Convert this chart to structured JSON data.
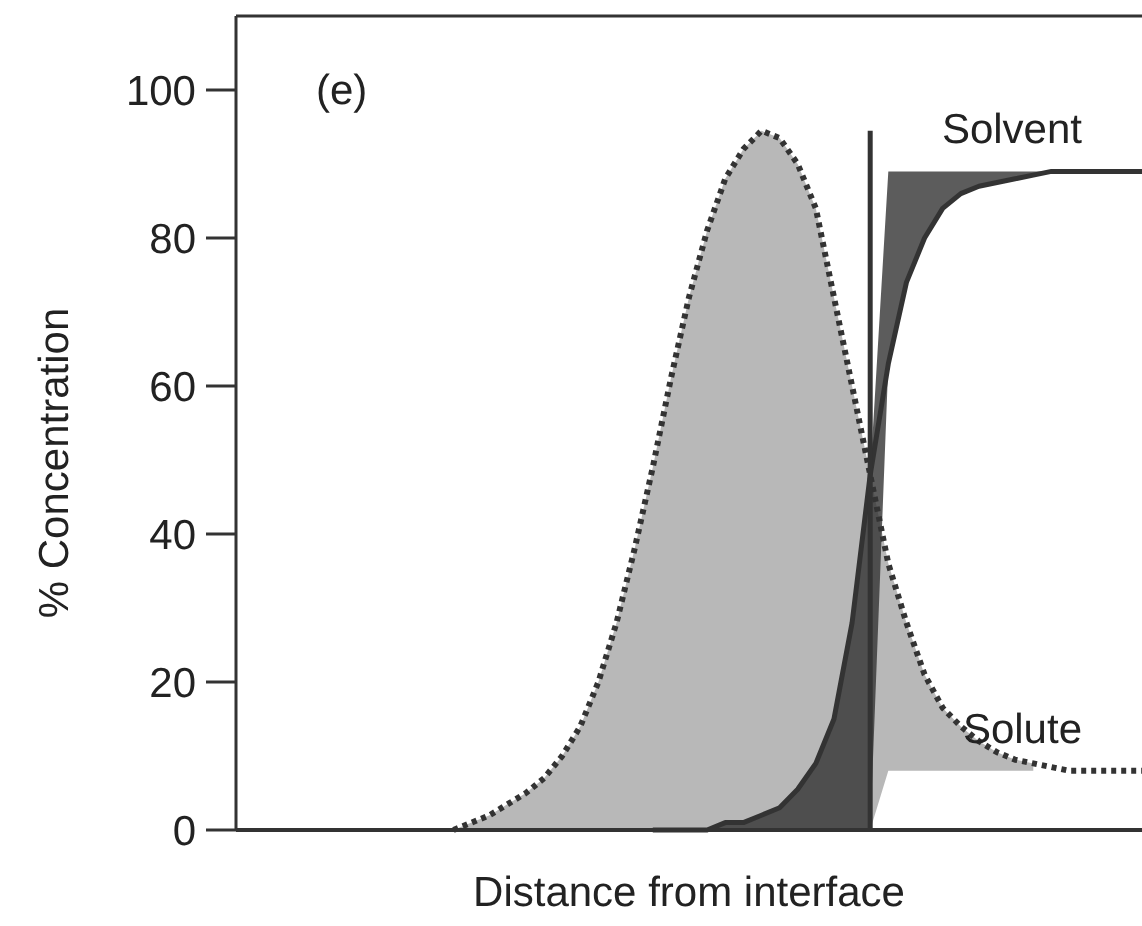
{
  "chart_data": {
    "type": "line",
    "xlabel": "Distance from interface",
    "ylabel": "% Concentration",
    "annotations": [
      "(e)"
    ],
    "categories": [
      null,
      null,
      null,
      null,
      null,
      null,
      null,
      null,
      null,
      null,
      null,
      null,
      null,
      null,
      null,
      null,
      null,
      null,
      null,
      null,
      null,
      null,
      null,
      null,
      null,
      null,
      null,
      null,
      null,
      null,
      null,
      null,
      null,
      null,
      null,
      null,
      null,
      null,
      null,
      null,
      null,
      null,
      null,
      null,
      null,
      null,
      null,
      null,
      null,
      null,
      null
    ],
    "ylim": [
      0,
      110
    ],
    "yticks": [
      0,
      20,
      40,
      60,
      80,
      100
    ],
    "tick_labels": "y",
    "series": [
      {
        "name": "Solute",
        "color": "#333333",
        "line_style": "dotted",
        "values": [
          null,
          null,
          null,
          null,
          null,
          null,
          null,
          null,
          null,
          null,
          null,
          null,
          0,
          1,
          2,
          3.5,
          5,
          7,
          10,
          14,
          20,
          28,
          38,
          49,
          61,
          72,
          81,
          88,
          92,
          94.5,
          93.5,
          90,
          84,
          72,
          60,
          48,
          36,
          28,
          21,
          16.5,
          14,
          12,
          10.5,
          9.5,
          9,
          8.5,
          8,
          8,
          8,
          8,
          8
        ],
        "lower": [
          null,
          null,
          null,
          null,
          null,
          null,
          null,
          null,
          null,
          null,
          null,
          null,
          0,
          0,
          0,
          0,
          0,
          0,
          0,
          0,
          0,
          0,
          0,
          0,
          0,
          0,
          0,
          0,
          0,
          0,
          0,
          0,
          0,
          0,
          0,
          0,
          8,
          8,
          8,
          8,
          8,
          8,
          8,
          8,
          8,
          null,
          null,
          null,
          null,
          null,
          null
        ],
        "upper": [
          null,
          null,
          null,
          null,
          null,
          null,
          null,
          null,
          null,
          null,
          null,
          null,
          0,
          1,
          2,
          3.5,
          5,
          7,
          10,
          14,
          20,
          28,
          38,
          49,
          61,
          72,
          81,
          88,
          92,
          94.5,
          93.5,
          90,
          84,
          72,
          60,
          48,
          36,
          28,
          21,
          16.5,
          14,
          12,
          10.5,
          9.5,
          9,
          null,
          null,
          null,
          null,
          null,
          null
        ]
      },
      {
        "name": "Solvent",
        "color": "#333333",
        "line_style": "solid",
        "values": [
          null,
          null,
          null,
          null,
          null,
          null,
          null,
          null,
          null,
          null,
          null,
          null,
          null,
          null,
          null,
          null,
          null,
          null,
          null,
          null,
          null,
          null,
          null,
          0,
          0,
          0,
          0,
          1,
          1,
          2,
          3,
          5.5,
          9,
          15,
          28,
          48,
          63,
          74,
          80,
          84,
          86,
          87,
          87.5,
          88,
          88.5,
          89,
          89,
          89,
          89,
          89,
          89
        ],
        "lower": [
          null,
          null,
          null,
          null,
          null,
          null,
          null,
          null,
          null,
          null,
          null,
          null,
          null,
          null,
          null,
          null,
          null,
          null,
          null,
          null,
          null,
          null,
          null,
          0,
          0,
          0,
          0,
          0,
          0,
          0,
          0,
          0,
          0,
          0,
          0,
          0,
          63,
          74,
          80,
          84,
          86,
          87,
          87.5,
          88,
          88.5,
          89,
          89,
          89,
          89,
          89,
          89
        ],
        "upper": [
          null,
          null,
          null,
          null,
          null,
          null,
          null,
          null,
          null,
          null,
          null,
          null,
          null,
          null,
          null,
          null,
          null,
          null,
          null,
          null,
          null,
          null,
          null,
          0,
          0,
          0,
          0,
          1,
          1,
          2,
          3,
          5.5,
          9,
          15,
          28,
          48,
          89,
          89,
          89,
          89,
          89,
          89,
          89,
          89,
          89,
          89,
          89,
          89,
          89,
          89,
          89
        ]
      }
    ]
  }
}
